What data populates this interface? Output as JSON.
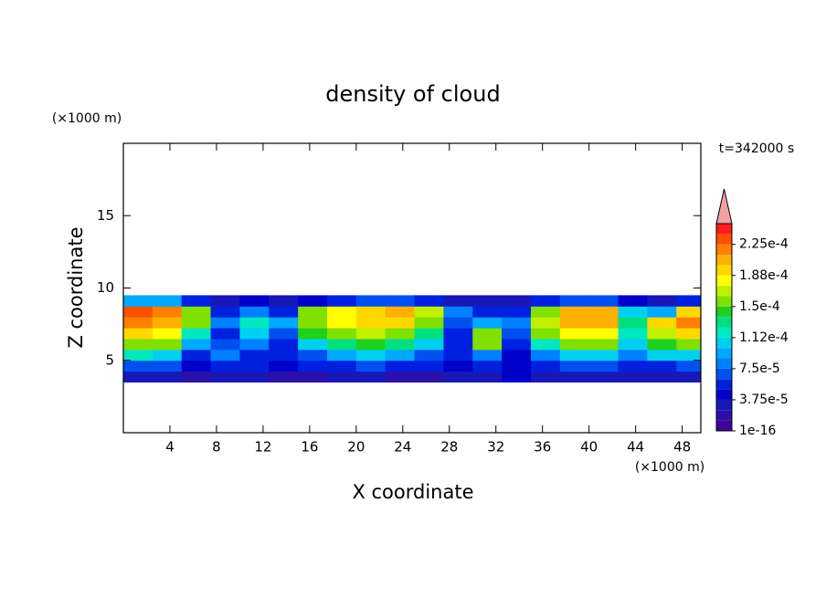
{
  "chart_data": {
    "type": "contour",
    "title": "density of cloud",
    "x_unit_label": "(×1000 m)",
    "y_unit_label": "(×1000 m)",
    "time_label": "t=342000 s",
    "xlabel": "X coordinate",
    "ylabel": "Z coordinate",
    "xlim": [
      0,
      49.6
    ],
    "ylim": [
      0,
      20
    ],
    "xticks": [
      4,
      8,
      12,
      16,
      20,
      24,
      28,
      32,
      36,
      40,
      44,
      48
    ],
    "yticks": [
      5,
      10,
      15
    ],
    "x": [
      1.25,
      3.75,
      6.25,
      8.75,
      11.25,
      13.75,
      16.25,
      18.75,
      21.25,
      23.75,
      26.25,
      28.75,
      31.25,
      33.75,
      36.25,
      38.75,
      41.25,
      43.75,
      46.25,
      48.75
    ],
    "y": [
      3.875,
      4.625,
      5.375,
      6.125,
      6.875,
      7.625,
      8.375,
      9.125
    ],
    "values": [
      [
        3e-05,
        3e-05,
        2e-05,
        3e-05,
        3e-05,
        2e-05,
        2e-05,
        3e-05,
        3e-05,
        2e-05,
        2e-05,
        3e-05,
        3e-05,
        4e-05,
        3e-05,
        3e-05,
        3e-05,
        3e-05,
        3e-05,
        3e-05
      ],
      [
        7e-05,
        7e-05,
        4e-05,
        6e-05,
        5e-05,
        4e-05,
        5e-05,
        6e-05,
        7e-05,
        6e-05,
        5e-05,
        4e-05,
        5e-05,
        4e-05,
        5e-05,
        7e-05,
        7e-05,
        6e-05,
        6e-05,
        7e-05
      ],
      [
        0.00012,
        0.00011,
        6e-05,
        8e-05,
        6e-05,
        5e-05,
        7e-05,
        9e-05,
        0.0001,
        9e-05,
        7e-05,
        5e-05,
        8e-05,
        4e-05,
        8e-05,
        0.00011,
        0.00011,
        8e-05,
        0.0001,
        0.00011
      ],
      [
        0.00016,
        0.00015,
        9e-05,
        7e-05,
        8e-05,
        6e-05,
        0.00011,
        0.00013,
        0.00014,
        0.00013,
        0.0001,
        6e-05,
        0.00015,
        5e-05,
        0.00012,
        0.00015,
        0.00015,
        0.0001,
        0.00014,
        0.00016
      ],
      [
        0.00019,
        0.00018,
        0.00012,
        6e-05,
        0.0001,
        7e-05,
        0.00014,
        0.00016,
        0.00017,
        0.00016,
        0.00013,
        6e-05,
        0.00016,
        7e-05,
        0.00015,
        0.00018,
        0.00018,
        0.00012,
        0.00017,
        0.00019
      ],
      [
        0.00022,
        0.00021,
        0.00015,
        8e-05,
        0.00012,
        9e-05,
        0.00016,
        0.00018,
        0.00019,
        0.00019,
        0.00016,
        7e-05,
        9e-05,
        8e-05,
        0.00017,
        0.0002,
        0.0002,
        0.00013,
        0.00019,
        0.00022
      ],
      [
        0.00023,
        0.00022,
        0.00015,
        5e-05,
        8e-05,
        6e-05,
        0.00015,
        0.00018,
        0.00019,
        0.0002,
        0.00017,
        8e-05,
        5e-05,
        6e-05,
        0.00015,
        0.00021,
        0.00021,
        0.0001,
        9e-05,
        0.00019
      ],
      [
        9e-05,
        9e-05,
        5e-05,
        3e-05,
        4e-05,
        3e-05,
        4e-05,
        6e-05,
        7e-05,
        7e-05,
        6e-05,
        3e-05,
        3e-05,
        3e-05,
        5e-05,
        7e-05,
        7e-05,
        4e-05,
        3e-05,
        5e-05
      ]
    ],
    "colorbar": {
      "levels": [
        1e-16,
        1.25e-05,
        2.5e-05,
        3.75e-05,
        5e-05,
        6.25e-05,
        7.5e-05,
        8.75e-05,
        0.0001,
        0.0001125,
        0.000125,
        0.0001375,
        0.00015,
        0.0001625,
        0.000175,
        0.0001875,
        0.0002,
        0.0002125,
        0.000225,
        0.0002375,
        0.00025
      ],
      "colors": [
        "#400098",
        "#2a10a8",
        "#1818b8",
        "#0000c8",
        "#0020e0",
        "#0050f0",
        "#0080ff",
        "#00a8ff",
        "#00d0f0",
        "#00e8c0",
        "#00e080",
        "#20d020",
        "#80e000",
        "#c0f000",
        "#ffff00",
        "#ffd800",
        "#ffb000",
        "#ff8000",
        "#ff5000",
        "#ff1c1c"
      ],
      "extend_color": "#f4a0a0",
      "ticks": [
        {
          "value": 1e-16,
          "label": "1e-16"
        },
        {
          "value": 3.75e-05,
          "label": "3.75e-5"
        },
        {
          "value": 7.5e-05,
          "label": "7.5e-5"
        },
        {
          "value": 0.0001125,
          "label": "1.12e-4"
        },
        {
          "value": 0.00015,
          "label": "1.5e-4"
        },
        {
          "value": 0.0001875,
          "label": "1.88e-4"
        },
        {
          "value": 0.000225,
          "label": "2.25e-4"
        }
      ]
    }
  }
}
